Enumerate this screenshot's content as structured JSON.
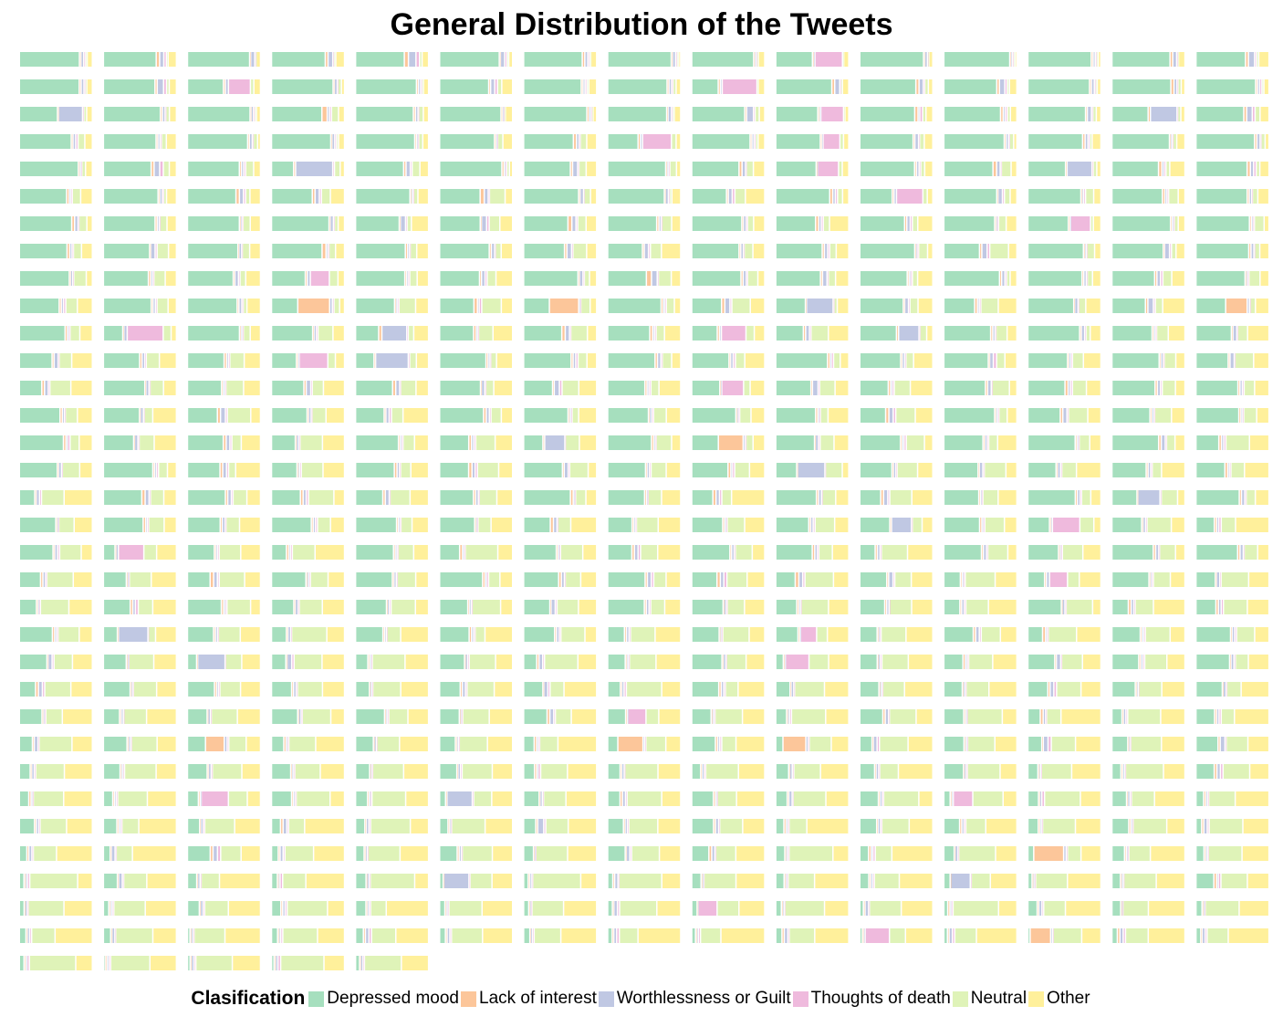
{
  "chart_data": {
    "type": "bar",
    "subtype": "small-multiples-stacked-bar",
    "title": "General Distribution of the Tweets",
    "xlabel": "",
    "ylabel": "",
    "legend": {
      "title": "Clasification",
      "position": "bottom",
      "entries": [
        {
          "name": "Depressed mood",
          "color": "#a6dfbe"
        },
        {
          "name": "Lack of interest",
          "color": "#fcc69a"
        },
        {
          "name": "Worthlessness or Guilt",
          "color": "#c0c8e3"
        },
        {
          "name": "Thoughts of death",
          "color": "#efbadd"
        },
        {
          "name": "Neutral",
          "color": "#dff3b8"
        },
        {
          "name": "Other",
          "color": "#fff09b"
        }
      ]
    },
    "grid": false,
    "columns": 15,
    "rows_per_column": [
      34,
      34,
      34,
      34,
      34,
      33,
      33,
      33,
      33,
      33,
      33,
      33,
      33,
      33,
      33
    ],
    "bar_profile": {
      "description": "Each small stacked bar shows the share of the six categories; Depressed mood share falls from ~0.8 in the top rows to ~0.05 in the bottom rows while Neutral and Other grow.",
      "top_row": [
        0.82,
        0.03,
        0.04,
        0.02,
        0.02,
        0.07
      ],
      "bottom_row": [
        0.05,
        0.02,
        0.03,
        0.02,
        0.45,
        0.43
      ]
    }
  }
}
